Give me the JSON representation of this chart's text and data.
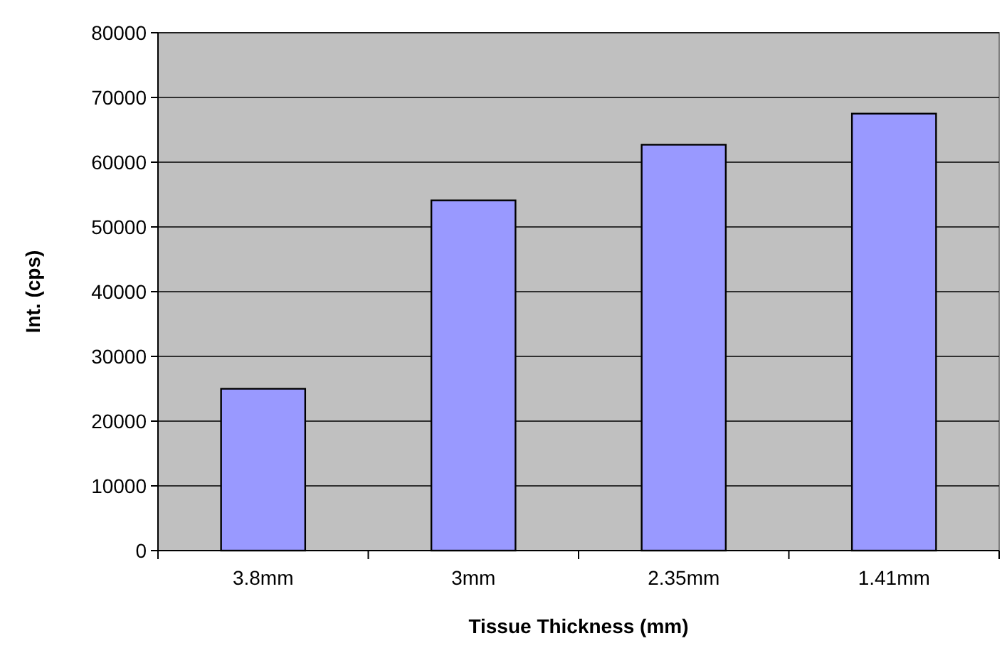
{
  "chart_data": {
    "type": "bar",
    "xlabel": "Tissue Thickness (mm)",
    "ylabel": "Int. (cps)",
    "categories": [
      "3.8mm",
      "3mm",
      "2.35mm",
      "1.41mm"
    ],
    "values": [
      25000,
      54100,
      62700,
      67500
    ],
    "color": "#9999ff",
    "ylim": [
      0,
      80000
    ],
    "yticks": [
      0,
      10000,
      20000,
      30000,
      40000,
      50000,
      60000,
      70000,
      80000
    ],
    "grid": "y"
  }
}
